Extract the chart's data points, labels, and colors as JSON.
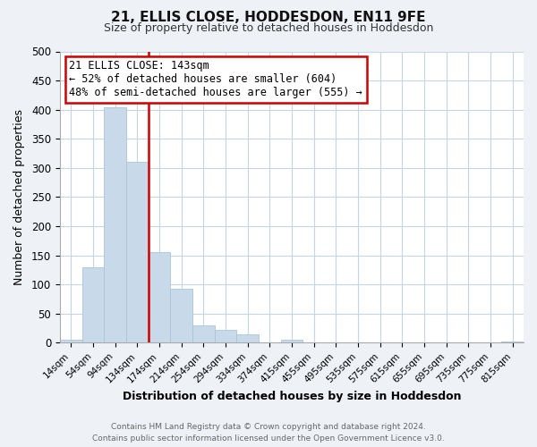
{
  "title": "21, ELLIS CLOSE, HODDESDON, EN11 9FE",
  "subtitle": "Size of property relative to detached houses in Hoddesdon",
  "xlabel": "Distribution of detached houses by size in Hoddesdon",
  "ylabel": "Number of detached properties",
  "bar_color": "#c8daea",
  "bar_edge_color": "#a8c4d8",
  "bin_labels": [
    "14sqm",
    "54sqm",
    "94sqm",
    "134sqm",
    "174sqm",
    "214sqm",
    "254sqm",
    "294sqm",
    "334sqm",
    "374sqm",
    "415sqm",
    "455sqm",
    "495sqm",
    "535sqm",
    "575sqm",
    "615sqm",
    "655sqm",
    "695sqm",
    "735sqm",
    "775sqm",
    "815sqm"
  ],
  "bar_heights": [
    6,
    130,
    404,
    311,
    156,
    93,
    30,
    22,
    14,
    0,
    5,
    0,
    0,
    0,
    0,
    0,
    0,
    0,
    0,
    0,
    2
  ],
  "vline_color": "#cc0000",
  "ylim": [
    0,
    500
  ],
  "yticks": [
    0,
    50,
    100,
    150,
    200,
    250,
    300,
    350,
    400,
    450,
    500
  ],
  "annotation_title": "21 ELLIS CLOSE: 143sqm",
  "annotation_line1": "← 52% of detached houses are smaller (604)",
  "annotation_line2": "48% of semi-detached houses are larger (555) →",
  "annotation_box_color": "#ffffff",
  "annotation_box_edge": "#cc0000",
  "footer1": "Contains HM Land Registry data © Crown copyright and database right 2024.",
  "footer2": "Contains public sector information licensed under the Open Government Licence v3.0.",
  "bg_color": "#eef2f7",
  "plot_bg_color": "#ffffff",
  "grid_color": "#c5d5e5"
}
